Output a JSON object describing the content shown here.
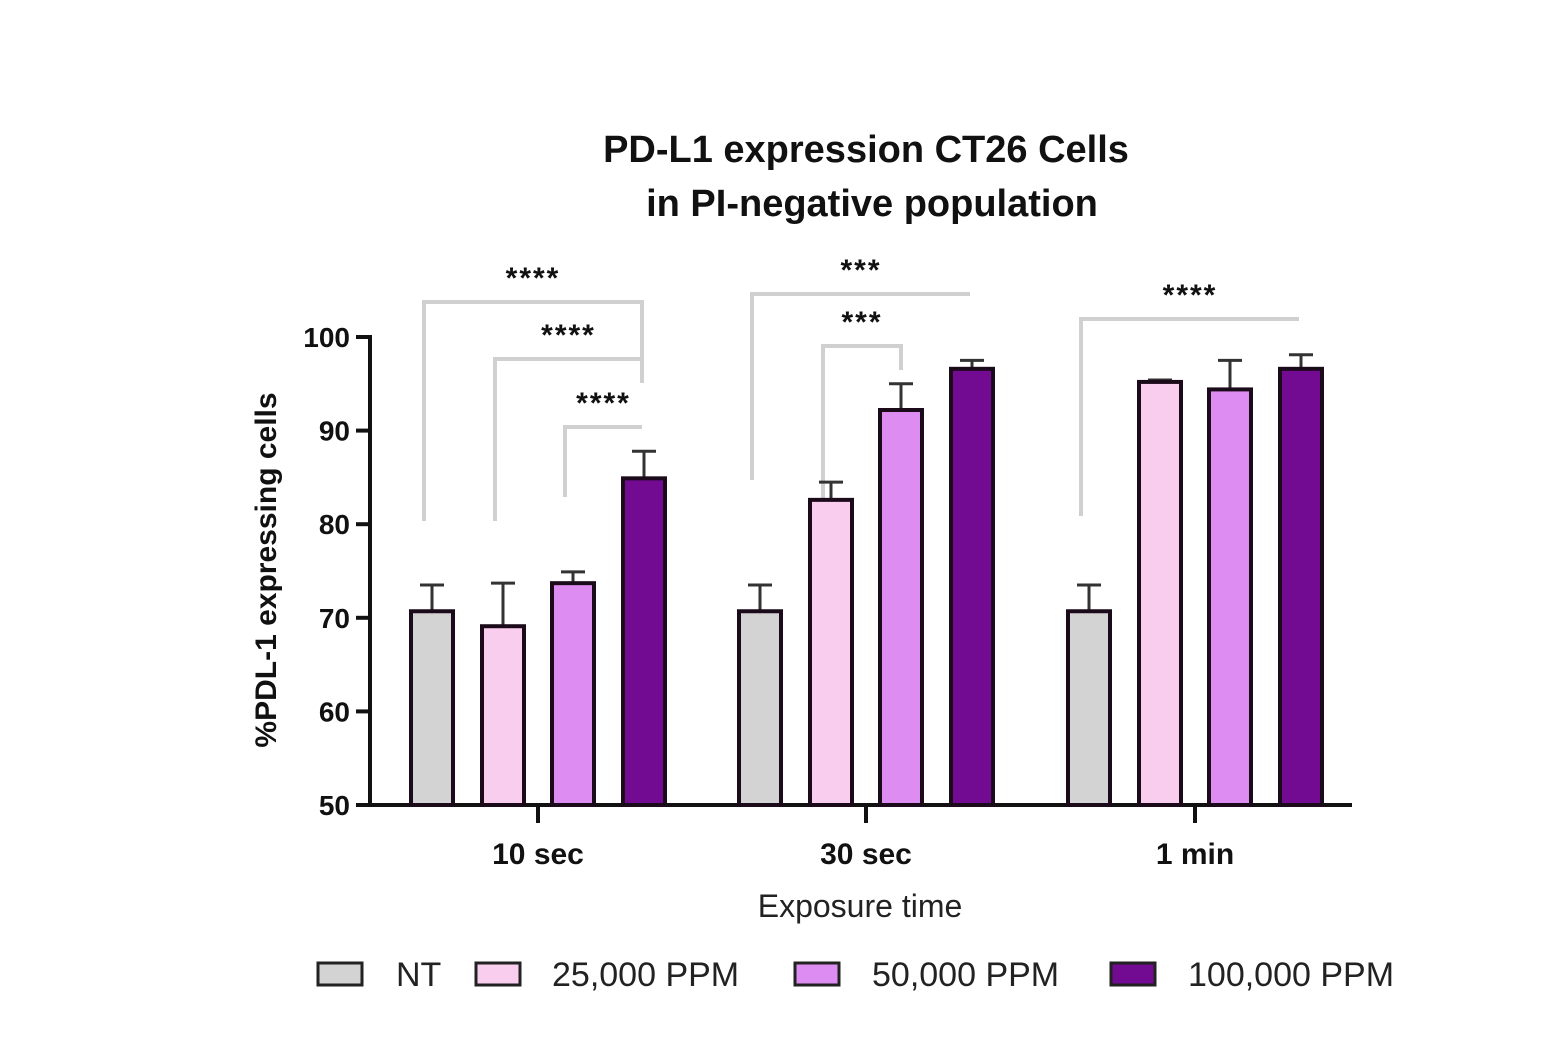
{
  "chart_data": {
    "type": "bar",
    "title": [
      "PD-L1 expression CT26 Cells",
      "in PI-negative population"
    ],
    "xlabel": "Exposure time",
    "ylabel": "%PDL-1 expressing cells",
    "ylim": [
      50,
      100
    ],
    "yticks": [
      50,
      60,
      70,
      80,
      90,
      100
    ],
    "categories": [
      "10 sec",
      "30 sec",
      "1 min"
    ],
    "legend_position": "bottom",
    "grid": false,
    "series": [
      {
        "name": "NT",
        "color": "#d3d3d3",
        "values": [
          70.7,
          70.7,
          70.7
        ],
        "error": [
          2.8,
          2.8,
          2.8
        ]
      },
      {
        "name": "25,000 PPM",
        "color": "#f8cdee",
        "values": [
          69.1,
          82.6,
          95.2
        ],
        "error": [
          4.6,
          1.9,
          0.2
        ]
      },
      {
        "name": "50,000 PPM",
        "color": "#dd8cf2",
        "values": [
          73.7,
          92.2,
          94.4
        ],
        "error": [
          1.2,
          2.8,
          3.1
        ]
      },
      {
        "name": "100,000 PPM",
        "color": "#720a92",
        "values": [
          84.9,
          96.6,
          96.6
        ],
        "error": [
          2.9,
          0.9,
          1.5
        ]
      }
    ],
    "significance": [
      {
        "category": "10 sec",
        "from": "NT",
        "to": "100,000 PPM",
        "label": "****"
      },
      {
        "category": "10 sec",
        "from": "25,000 PPM",
        "to": "100,000 PPM",
        "label": "****"
      },
      {
        "category": "10 sec",
        "from": "50,000 PPM",
        "to": "100,000 PPM",
        "label": "****"
      },
      {
        "category": "30 sec",
        "from": "NT",
        "to": "100,000 PPM",
        "label": "***"
      },
      {
        "category": "30 sec",
        "from": "25,000 PPM",
        "to": "50,000 PPM",
        "label": "***"
      },
      {
        "category": "1 min",
        "from": "NT",
        "to": "100,000 PPM",
        "label": "****"
      }
    ]
  }
}
